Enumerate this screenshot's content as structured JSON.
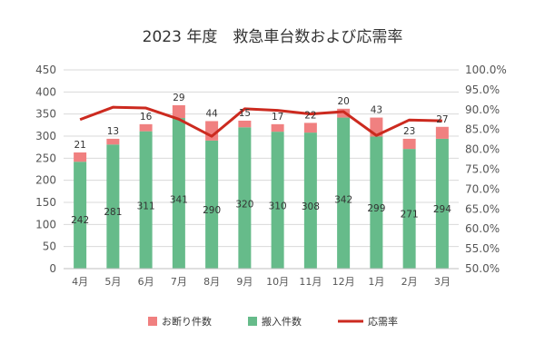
{
  "chart_data": {
    "type": "bar",
    "title": "2023 年度　救急車台数および応需率",
    "categories": [
      "4月",
      "5月",
      "6月",
      "7月",
      "8月",
      "9月",
      "10月",
      "11月",
      "12月",
      "1月",
      "2月",
      "3月"
    ],
    "series": [
      {
        "name": "搬入件数",
        "kind": "bar",
        "stack": "main",
        "color": "#66bb8a",
        "values": [
          242,
          281,
          311,
          341,
          290,
          320,
          310,
          308,
          342,
          299,
          271,
          294
        ]
      },
      {
        "name": "お断り件数",
        "kind": "bar",
        "stack": "main",
        "color": "#f08080",
        "values": [
          21,
          13,
          16,
          29,
          44,
          15,
          17,
          22,
          20,
          43,
          23,
          27
        ]
      },
      {
        "name": "応需率",
        "kind": "line",
        "axis": "right",
        "color": "#cc2a1f",
        "values": [
          0.875,
          0.906,
          0.904,
          0.876,
          0.833,
          0.902,
          0.898,
          0.889,
          0.895,
          0.835,
          0.874,
          0.872
        ]
      }
    ],
    "y_left": {
      "min": 0,
      "max": 450,
      "step": 50
    },
    "y_right": {
      "min": 0.5,
      "max": 1.0,
      "step": 0.05,
      "format": "percent1"
    },
    "grid": true,
    "legend_position": "bottom"
  }
}
